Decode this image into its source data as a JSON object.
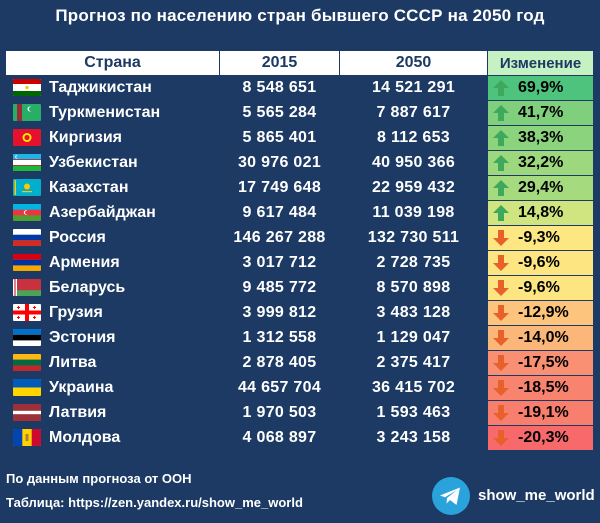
{
  "title": "Прогноз по населению стран бывшего СССР на 2050 год",
  "headers": {
    "country": "Страна",
    "y2015": "2015",
    "y2050": "2050",
    "change": "Изменение"
  },
  "rows": [
    {
      "flag": "tajikistan-flag-icon",
      "name": "Таджикистан",
      "p2015": "8 548 651",
      "p2050": "14 521 291",
      "change": "69,9%",
      "dir": "up",
      "bg": "#4ec37d"
    },
    {
      "flag": "turkmenistan-flag-icon",
      "name": "Туркменистан",
      "p2015": "5 565 284",
      "p2050": "7 887 617",
      "change": "41,7%",
      "dir": "up",
      "bg": "#7fcf7d"
    },
    {
      "flag": "kyrgyzstan-flag-icon",
      "name": "Киргизия",
      "p2015": "5 865 401",
      "p2050": "8 112 653",
      "change": "38,3%",
      "dir": "up",
      "bg": "#8bd37d"
    },
    {
      "flag": "uzbekistan-flag-icon",
      "name": "Узбекистан",
      "p2015": "30 976 021",
      "p2050": "40 950 366",
      "change": "32,2%",
      "dir": "up",
      "bg": "#9dd87e"
    },
    {
      "flag": "kazakhstan-flag-icon",
      "name": "Казахстан",
      "p2015": "17 749 648",
      "p2050": "22 959 432",
      "change": "29,4%",
      "dir": "up",
      "bg": "#a6da7e"
    },
    {
      "flag": "azerbaijan-flag-icon",
      "name": "Азербайджан",
      "p2015": "9 617 484",
      "p2050": "11 039 198",
      "change": "14,8%",
      "dir": "up",
      "bg": "#d0e47f"
    },
    {
      "flag": "russia-flag-icon",
      "name": "Россия",
      "p2015": "146 267 288",
      "p2050": "132 730 511",
      "change": "-9,3%",
      "dir": "down",
      "bg": "#fde782"
    },
    {
      "flag": "armenia-flag-icon",
      "name": "Армения",
      "p2015": "3 017 712",
      "p2050": "2 728 735",
      "change": "-9,6%",
      "dir": "down",
      "bg": "#fde582"
    },
    {
      "flag": "belarus-flag-icon",
      "name": "Беларусь",
      "p2015": "9 485 772",
      "p2050": "8 570 898",
      "change": "-9,6%",
      "dir": "down",
      "bg": "#fde582"
    },
    {
      "flag": "georgia-flag-icon",
      "name": "Грузия",
      "p2015": "3 999 812",
      "p2050": "3 483 128",
      "change": "-12,9%",
      "dir": "down",
      "bg": "#fcc47c"
    },
    {
      "flag": "estonia-flag-icon",
      "name": "Эстония",
      "p2015": "1 312 558",
      "p2050": "1 129 047",
      "change": "-14,0%",
      "dir": "down",
      "bg": "#fbb77a"
    },
    {
      "flag": "lithuania-flag-icon",
      "name": "Литва",
      "p2015": "2 878 405",
      "p2050": "2 375 417",
      "change": "-17,5%",
      "dir": "down",
      "bg": "#f98f73"
    },
    {
      "flag": "ukraine-flag-icon",
      "name": "Украина",
      "p2015": "44 657 704",
      "p2050": "36 415 702",
      "change": "-18,5%",
      "dir": "down",
      "bg": "#f8836f"
    },
    {
      "flag": "latvia-flag-icon",
      "name": "Латвия",
      "p2015": "1 970 503",
      "p2050": "1 593 463",
      "change": "-19,1%",
      "dir": "down",
      "bg": "#f87e6e"
    },
    {
      "flag": "moldova-flag-icon",
      "name": "Молдова",
      "p2015": "4 068 897",
      "p2050": "3 243 158",
      "change": "-20,3%",
      "dir": "down",
      "bg": "#f8696b"
    }
  ],
  "footer": {
    "source": "По данным прогноза от ООН",
    "table_link": "Таблица: https://zen.yandex.ru/show_me_world"
  },
  "telegram": {
    "icon": "telegram-icon",
    "handle": "show_me_world"
  },
  "colors": {
    "background": "#1c3a63",
    "up_arrow": "#3ea85c",
    "down_arrow": "#e8602a"
  }
}
